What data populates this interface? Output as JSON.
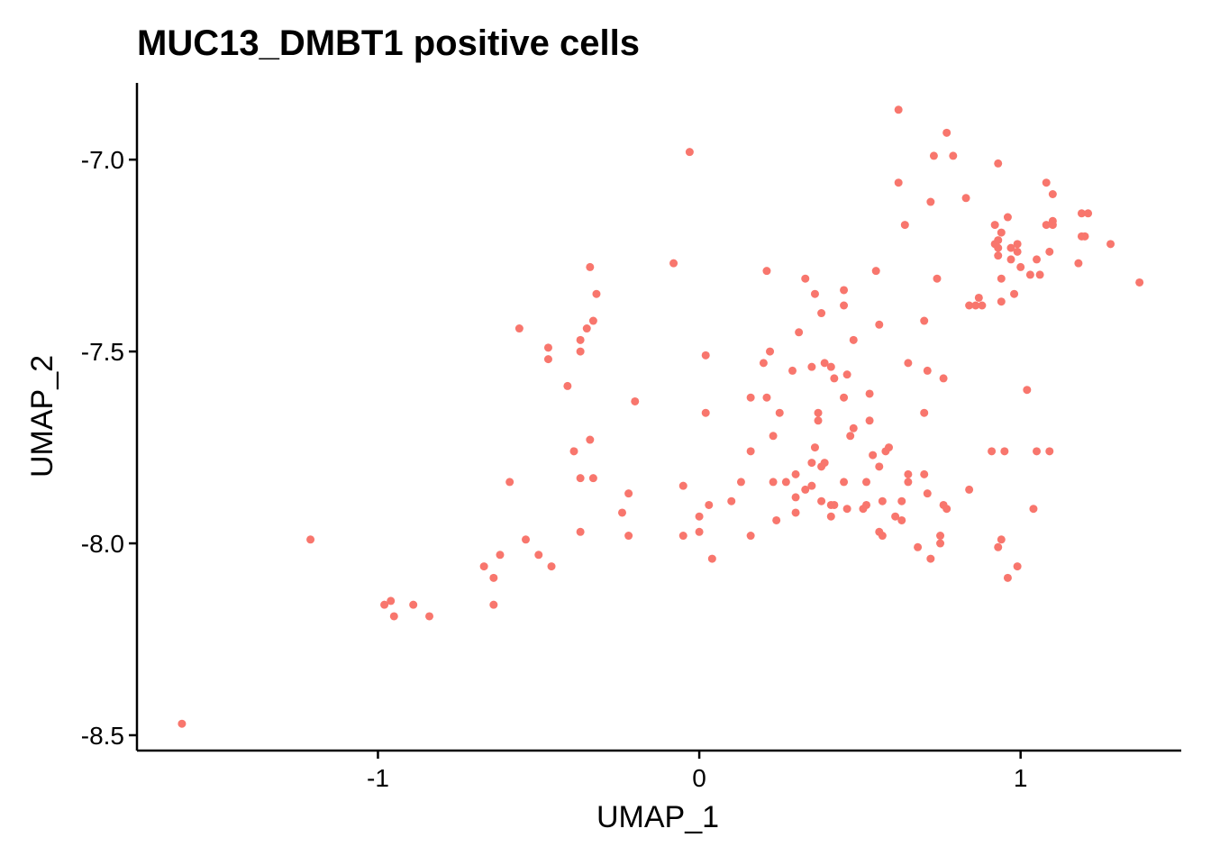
{
  "chart_data": {
    "type": "scatter",
    "title": "MUC13_DMBT1 positive cells",
    "xlabel": "UMAP_1",
    "ylabel": "UMAP_2",
    "xlim": [
      -1.75,
      1.5
    ],
    "ylim": [
      -8.54,
      -6.8
    ],
    "xticks": [
      -1,
      0,
      1
    ],
    "xtick_labels": [
      "-1",
      "0",
      "1"
    ],
    "yticks": [
      -7.0,
      -7.5,
      -8.0,
      -8.5
    ],
    "ytick_labels": [
      "-7.0",
      "-7.5",
      "-8.0",
      "-8.5"
    ],
    "grid": false,
    "legend": "none",
    "point_color": "#F8766D",
    "points": [
      [
        -1.61,
        -8.47
      ],
      [
        -1.21,
        -7.99
      ],
      [
        -0.98,
        -8.16
      ],
      [
        -0.96,
        -8.15
      ],
      [
        -0.95,
        -8.19
      ],
      [
        -0.89,
        -8.16
      ],
      [
        -0.84,
        -8.19
      ],
      [
        -0.67,
        -8.06
      ],
      [
        -0.64,
        -8.09
      ],
      [
        -0.64,
        -8.16
      ],
      [
        -0.62,
        -8.03
      ],
      [
        -0.59,
        -7.84
      ],
      [
        -0.56,
        -7.44
      ],
      [
        -0.54,
        -7.99
      ],
      [
        -0.5,
        -8.03
      ],
      [
        -0.47,
        -7.49
      ],
      [
        -0.47,
        -7.52
      ],
      [
        -0.46,
        -8.06
      ],
      [
        -0.41,
        -7.59
      ],
      [
        -0.39,
        -7.76
      ],
      [
        -0.37,
        -7.83
      ],
      [
        -0.37,
        -7.97
      ],
      [
        -0.37,
        -7.47
      ],
      [
        -0.37,
        -7.5
      ],
      [
        -0.35,
        -7.44
      ],
      [
        -0.34,
        -7.28
      ],
      [
        -0.34,
        -7.73
      ],
      [
        -0.33,
        -7.42
      ],
      [
        -0.33,
        -7.83
      ],
      [
        -0.32,
        -7.35
      ],
      [
        -0.24,
        -7.92
      ],
      [
        -0.22,
        -7.87
      ],
      [
        -0.22,
        -7.98
      ],
      [
        -0.2,
        -7.63
      ],
      [
        -0.08,
        -7.27
      ],
      [
        -0.05,
        -7.85
      ],
      [
        -0.05,
        -7.98
      ],
      [
        -0.03,
        -6.98
      ],
      [
        0.0,
        -7.93
      ],
      [
        0.0,
        -7.97
      ],
      [
        0.02,
        -7.51
      ],
      [
        0.02,
        -7.66
      ],
      [
        0.03,
        -7.9
      ],
      [
        0.04,
        -8.04
      ],
      [
        0.1,
        -7.89
      ],
      [
        0.13,
        -7.84
      ],
      [
        0.16,
        -7.62
      ],
      [
        0.16,
        -7.76
      ],
      [
        0.16,
        -7.98
      ],
      [
        0.2,
        -7.53
      ],
      [
        0.21,
        -7.62
      ],
      [
        0.21,
        -7.29
      ],
      [
        0.22,
        -7.5
      ],
      [
        0.23,
        -7.72
      ],
      [
        0.23,
        -7.84
      ],
      [
        0.24,
        -7.94
      ],
      [
        0.25,
        -7.66
      ],
      [
        0.27,
        -7.84
      ],
      [
        0.29,
        -7.55
      ],
      [
        0.3,
        -7.82
      ],
      [
        0.3,
        -7.88
      ],
      [
        0.3,
        -7.92
      ],
      [
        0.31,
        -7.45
      ],
      [
        0.33,
        -7.86
      ],
      [
        0.33,
        -7.31
      ],
      [
        0.35,
        -7.54
      ],
      [
        0.35,
        -7.79
      ],
      [
        0.35,
        -7.85
      ],
      [
        0.36,
        -7.35
      ],
      [
        0.36,
        -7.75
      ],
      [
        0.37,
        -7.66
      ],
      [
        0.37,
        -7.68
      ],
      [
        0.38,
        -7.4
      ],
      [
        0.38,
        -7.8
      ],
      [
        0.38,
        -7.89
      ],
      [
        0.39,
        -7.53
      ],
      [
        0.39,
        -7.79
      ],
      [
        0.41,
        -7.54
      ],
      [
        0.41,
        -7.9
      ],
      [
        0.41,
        -7.93
      ],
      [
        0.42,
        -7.57
      ],
      [
        0.42,
        -7.9
      ],
      [
        0.45,
        -7.34
      ],
      [
        0.45,
        -7.38
      ],
      [
        0.45,
        -7.62
      ],
      [
        0.45,
        -7.84
      ],
      [
        0.46,
        -7.56
      ],
      [
        0.46,
        -7.91
      ],
      [
        0.47,
        -7.72
      ],
      [
        0.48,
        -7.47
      ],
      [
        0.48,
        -7.7
      ],
      [
        0.51,
        -7.91
      ],
      [
        0.52,
        -7.9
      ],
      [
        0.52,
        -7.84
      ],
      [
        0.53,
        -7.61
      ],
      [
        0.53,
        -7.68
      ],
      [
        0.54,
        -7.77
      ],
      [
        0.55,
        -7.29
      ],
      [
        0.56,
        -7.43
      ],
      [
        0.56,
        -7.8
      ],
      [
        0.56,
        -7.97
      ],
      [
        0.57,
        -7.89
      ],
      [
        0.57,
        -7.98
      ],
      [
        0.58,
        -7.76
      ],
      [
        0.59,
        -7.75
      ],
      [
        0.61,
        -7.93
      ],
      [
        0.62,
        -6.87
      ],
      [
        0.62,
        -7.06
      ],
      [
        0.63,
        -7.94
      ],
      [
        0.63,
        -7.89
      ],
      [
        0.64,
        -7.17
      ],
      [
        0.65,
        -7.53
      ],
      [
        0.65,
        -7.82
      ],
      [
        0.65,
        -7.84
      ],
      [
        0.68,
        -8.01
      ],
      [
        0.7,
        -7.42
      ],
      [
        0.7,
        -7.66
      ],
      [
        0.7,
        -7.82
      ],
      [
        0.71,
        -7.55
      ],
      [
        0.71,
        -7.87
      ],
      [
        0.72,
        -8.04
      ],
      [
        0.72,
        -7.11
      ],
      [
        0.73,
        -6.99
      ],
      [
        0.74,
        -7.31
      ],
      [
        0.75,
        -8.0
      ],
      [
        0.75,
        -7.98
      ],
      [
        0.76,
        -7.9
      ],
      [
        0.76,
        -7.57
      ],
      [
        0.77,
        -7.91
      ],
      [
        0.77,
        -6.93
      ],
      [
        0.79,
        -6.99
      ],
      [
        0.83,
        -7.1
      ],
      [
        0.84,
        -7.38
      ],
      [
        0.84,
        -7.86
      ],
      [
        0.86,
        -7.38
      ],
      [
        0.87,
        -7.36
      ],
      [
        0.88,
        -7.38
      ],
      [
        0.91,
        -7.76
      ],
      [
        0.92,
        -7.17
      ],
      [
        0.92,
        -7.22
      ],
      [
        0.93,
        -7.01
      ],
      [
        0.93,
        -7.21
      ],
      [
        0.93,
        -7.23
      ],
      [
        0.93,
        -7.25
      ],
      [
        0.93,
        -8.01
      ],
      [
        0.94,
        -7.31
      ],
      [
        0.94,
        -7.19
      ],
      [
        0.94,
        -7.99
      ],
      [
        0.94,
        -7.37
      ],
      [
        0.95,
        -7.76
      ],
      [
        0.96,
        -8.09
      ],
      [
        0.96,
        -7.15
      ],
      [
        0.97,
        -7.23
      ],
      [
        0.97,
        -7.26
      ],
      [
        0.98,
        -7.35
      ],
      [
        0.99,
        -7.24
      ],
      [
        0.99,
        -7.22
      ],
      [
        0.99,
        -8.06
      ],
      [
        1.0,
        -7.28
      ],
      [
        1.02,
        -7.6
      ],
      [
        1.03,
        -7.3
      ],
      [
        1.04,
        -7.91
      ],
      [
        1.05,
        -7.26
      ],
      [
        1.05,
        -7.76
      ],
      [
        1.06,
        -7.3
      ],
      [
        1.08,
        -7.06
      ],
      [
        1.08,
        -7.17
      ],
      [
        1.09,
        -7.76
      ],
      [
        1.09,
        -7.24
      ],
      [
        1.1,
        -7.09
      ],
      [
        1.1,
        -7.16
      ],
      [
        1.1,
        -7.17
      ],
      [
        1.18,
        -7.27
      ],
      [
        1.19,
        -7.2
      ],
      [
        1.19,
        -7.14
      ],
      [
        1.2,
        -7.2
      ],
      [
        1.21,
        -7.14
      ],
      [
        1.28,
        -7.22
      ],
      [
        1.37,
        -7.32
      ]
    ]
  }
}
